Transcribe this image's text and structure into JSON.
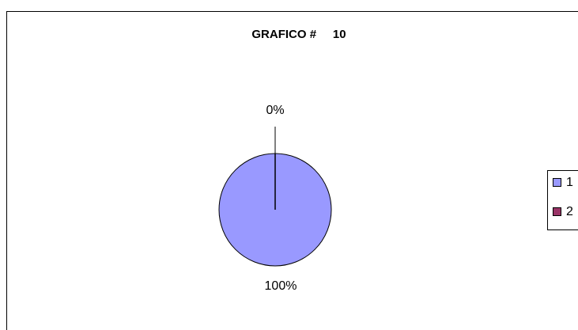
{
  "chart_data": {
    "type": "pie",
    "title": "GRAFICO #     10",
    "categories": [
      "1",
      "2"
    ],
    "values": [
      100,
      0
    ],
    "value_labels": [
      "100%",
      "0%"
    ],
    "colors": [
      "#9999ff",
      "#993366"
    ],
    "legend": "right"
  }
}
